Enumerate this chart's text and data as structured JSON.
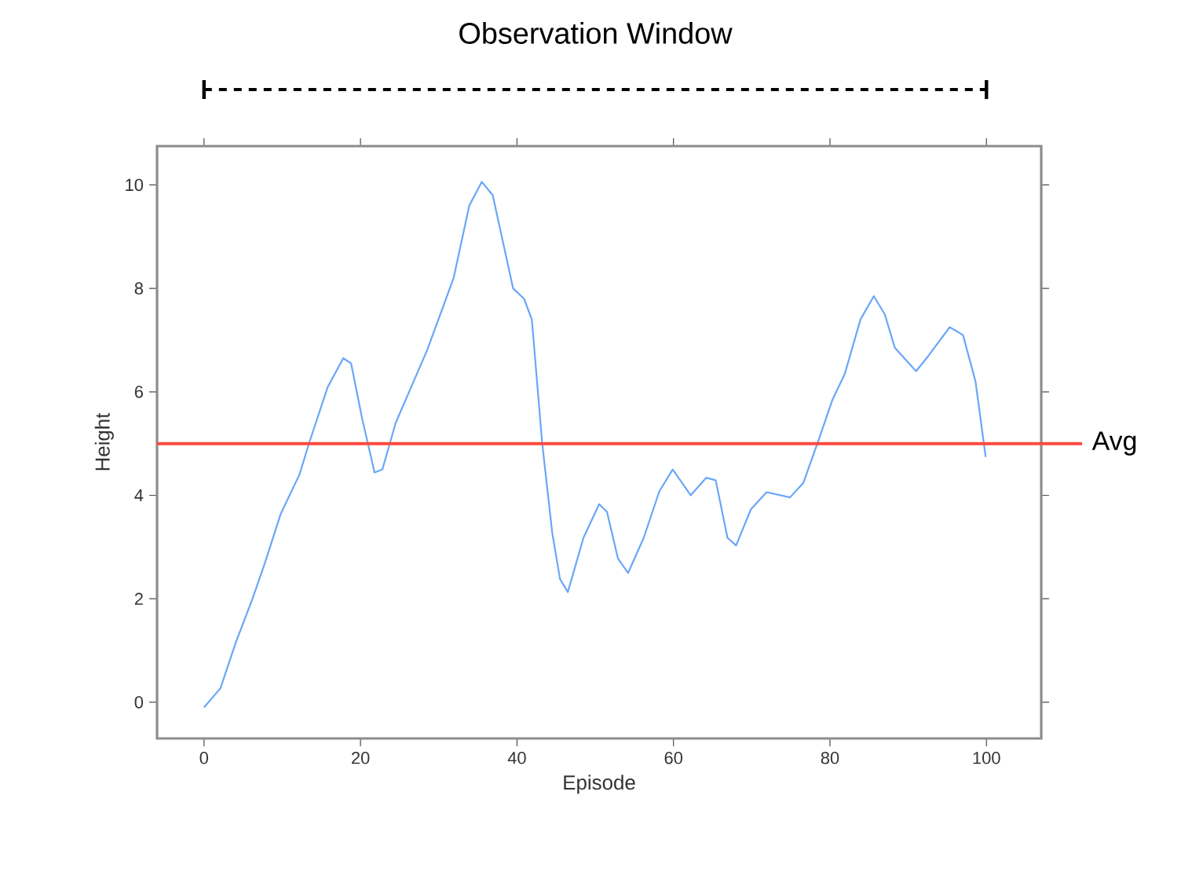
{
  "chart_data": {
    "type": "line",
    "xlabel": "Episode",
    "ylabel": "Height",
    "xlim": [
      -6,
      107
    ],
    "ylim": [
      -0.7,
      10.75
    ],
    "xticks": [
      0,
      20,
      40,
      60,
      80,
      100
    ],
    "yticks": [
      0,
      2,
      4,
      6,
      8,
      10
    ],
    "grid": false,
    "marker": "none",
    "line_style": "solid",
    "series": [
      {
        "color": "#6aa6f8",
        "x": [
          0,
          2.1,
          4.1,
          6.2,
          7.8,
          9.8,
          12.2,
          13.5,
          15.8,
          17.8,
          18.8,
          20.2,
          21.8,
          22.8,
          24.5,
          26.5,
          28.5,
          30.2,
          31.9,
          33.9,
          35.5,
          36.9,
          38.2,
          39.5,
          40.9,
          41.9,
          43.2,
          44.5,
          45.5,
          46.5,
          48.5,
          50.5,
          51.5,
          52.9,
          54.2,
          56.2,
          58.2,
          59.9,
          62.2,
          64.2,
          65.4,
          66.9,
          68.0,
          69.9,
          71.9,
          74.9,
          76.6,
          78.6,
          80.3,
          81.9,
          83.9,
          85.6,
          87.0,
          88.3,
          91.0,
          92.6,
          95.3,
          97.0,
          98.6,
          99.9
        ],
        "values": [
          -0.1,
          0.27,
          1.17,
          2.0,
          2.7,
          3.64,
          4.4,
          5.04,
          6.09,
          6.65,
          6.55,
          5.49,
          4.44,
          4.5,
          5.4,
          6.1,
          6.8,
          7.5,
          8.2,
          9.6,
          10.06,
          9.8,
          8.9,
          8.0,
          7.8,
          7.4,
          5.04,
          3.28,
          2.38,
          2.13,
          3.18,
          3.83,
          3.68,
          2.78,
          2.5,
          3.18,
          4.08,
          4.5,
          4.0,
          4.34,
          4.29,
          3.18,
          3.03,
          3.73,
          4.06,
          3.96,
          4.24,
          5.09,
          5.84,
          6.35,
          7.4,
          7.85,
          7.5,
          6.85,
          6.4,
          6.7,
          7.25,
          7.1,
          6.2,
          4.74
        ]
      }
    ],
    "ref_lines": [
      {
        "axis": "y",
        "value": 5,
        "label": "Avg",
        "color": "#ff4a40"
      }
    ],
    "annotations": [
      "Observation Window"
    ]
  }
}
